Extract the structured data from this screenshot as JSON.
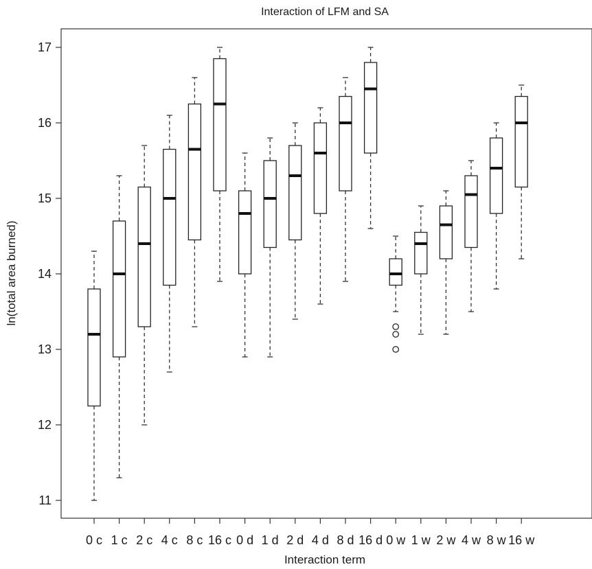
{
  "chart_data": {
    "type": "boxplot",
    "title": "Interaction of LFM and SA",
    "xlabel": "Interaction term",
    "ylabel": "ln(total area burned)",
    "ylim": [
      10.75,
      17.25
    ],
    "yticks": [
      11,
      12,
      13,
      14,
      15,
      16,
      17
    ],
    "categories": [
      "0 c",
      "1 c",
      "2 c",
      "4 c",
      "8 c",
      "16 c",
      "0 d",
      "1 d",
      "2 d",
      "4 d",
      "8 d",
      "16 d",
      "0 w",
      "1 w",
      "2 w",
      "4 w",
      "8 w",
      "16 w"
    ],
    "boxes": [
      {
        "label": "0 c",
        "min": 11.0,
        "q1": 12.25,
        "median": 13.2,
        "q3": 13.8,
        "max": 14.3,
        "outliers": []
      },
      {
        "label": "1 c",
        "min": 11.3,
        "q1": 12.9,
        "median": 14.0,
        "q3": 14.7,
        "max": 15.3,
        "outliers": []
      },
      {
        "label": "2 c",
        "min": 12.0,
        "q1": 13.3,
        "median": 14.4,
        "q3": 15.15,
        "max": 15.7,
        "outliers": []
      },
      {
        "label": "4 c",
        "min": 12.7,
        "q1": 13.85,
        "median": 15.0,
        "q3": 15.65,
        "max": 16.1,
        "outliers": []
      },
      {
        "label": "8 c",
        "min": 13.3,
        "q1": 14.45,
        "median": 15.65,
        "q3": 16.25,
        "max": 16.6,
        "outliers": []
      },
      {
        "label": "16 c",
        "min": 13.9,
        "q1": 15.1,
        "median": 16.25,
        "q3": 16.85,
        "max": 17.0,
        "outliers": []
      },
      {
        "label": "0 d",
        "min": 12.9,
        "q1": 14.0,
        "median": 14.8,
        "q3": 15.1,
        "max": 15.6,
        "outliers": []
      },
      {
        "label": "1 d",
        "min": 12.9,
        "q1": 14.35,
        "median": 15.0,
        "q3": 15.5,
        "max": 15.8,
        "outliers": []
      },
      {
        "label": "2 d",
        "min": 13.4,
        "q1": 14.45,
        "median": 15.3,
        "q3": 15.7,
        "max": 16.0,
        "outliers": []
      },
      {
        "label": "4 d",
        "min": 13.6,
        "q1": 14.8,
        "median": 15.6,
        "q3": 16.0,
        "max": 16.2,
        "outliers": []
      },
      {
        "label": "8 d",
        "min": 13.9,
        "q1": 15.1,
        "median": 16.0,
        "q3": 16.35,
        "max": 16.6,
        "outliers": []
      },
      {
        "label": "16 d",
        "min": 14.6,
        "q1": 15.6,
        "median": 16.45,
        "q3": 16.8,
        "max": 17.0,
        "outliers": []
      },
      {
        "label": "0 w",
        "min": 13.5,
        "q1": 13.85,
        "median": 14.0,
        "q3": 14.2,
        "max": 14.5,
        "outliers": [
          13.3,
          13.2,
          13.0
        ]
      },
      {
        "label": "1 w",
        "min": 13.2,
        "q1": 14.0,
        "median": 14.4,
        "q3": 14.55,
        "max": 14.9,
        "outliers": []
      },
      {
        "label": "2 w",
        "min": 13.2,
        "q1": 14.2,
        "median": 14.65,
        "q3": 14.9,
        "max": 15.1,
        "outliers": []
      },
      {
        "label": "4 w",
        "min": 13.5,
        "q1": 14.35,
        "median": 15.05,
        "q3": 15.3,
        "max": 15.5,
        "outliers": []
      },
      {
        "label": "8 w",
        "min": 13.8,
        "q1": 14.8,
        "median": 15.4,
        "q3": 15.8,
        "max": 16.0,
        "outliers": []
      },
      {
        "label": "16 w",
        "min": 14.2,
        "q1": 15.15,
        "median": 16.0,
        "q3": 16.35,
        "max": 16.5,
        "outliers": []
      }
    ],
    "grid": false,
    "legend": "none"
  }
}
